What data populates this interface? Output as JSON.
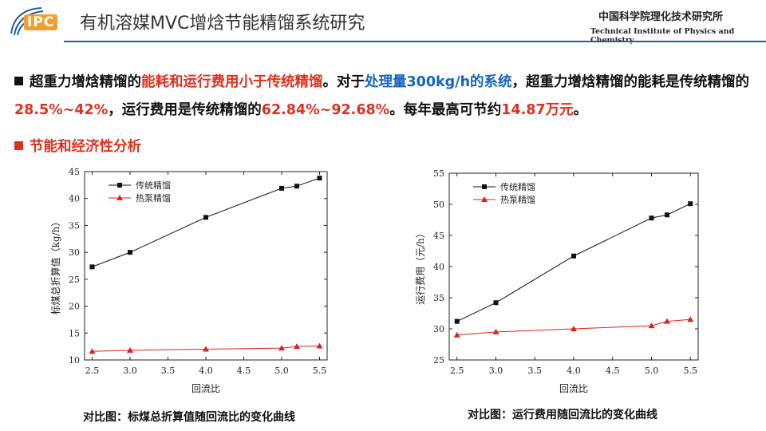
{
  "header": {
    "logo_text": "IPC",
    "title": "有机溶媒MVC增焓节能精馏系统研究",
    "institute_cn": "中国科学院理化技术研究所",
    "institute_en": "Technical Institute of Physics and Chemistry"
  },
  "intro": {
    "p1": "超重力增焓精馏的",
    "p2": "能耗和运行费用小于传统精馏",
    "p3": "。对于",
    "p4": "处理量300kg/h的系统",
    "p5": "，超重力增焓精馏的能耗是传统精馏的",
    "p6": "28.5%~42%",
    "p7": "，运行费用是传统精馏的",
    "p8": "62.84%~92.68%",
    "p9": "。每年最高可节约",
    "p10": "14.87万元",
    "p11": "。"
  },
  "subheading": "节能和经济性分析",
  "captions": {
    "left": "对比图：标煤总折算值随回流比的变化曲线",
    "right": "对比图：运行费用随回流比的变化曲线"
  },
  "colors": {
    "accent_red": "#e0301e",
    "accent_blue": "#1565c0",
    "series1": "#111111",
    "series2": "#e0201a"
  },
  "chart_data": [
    {
      "type": "line",
      "title": "",
      "xlabel": "回流比",
      "ylabel": "标煤总折算值（kg/h）",
      "xlim": [
        2.5,
        5.5
      ],
      "ylim": [
        10,
        45
      ],
      "xticks": [
        2.5,
        3.0,
        3.5,
        4.0,
        4.5,
        5.0,
        5.5
      ],
      "yticks": [
        10,
        15,
        20,
        25,
        30,
        35,
        40,
        45
      ],
      "legend_position": "top-left",
      "series": [
        {
          "name": "传统精馏",
          "marker": "square",
          "x": [
            2.5,
            3.0,
            4.0,
            5.0,
            5.2,
            5.5
          ],
          "y": [
            27.3,
            30.0,
            36.5,
            41.9,
            42.3,
            43.8
          ]
        },
        {
          "name": "热泵精馏",
          "marker": "triangle",
          "x": [
            2.5,
            3.0,
            4.0,
            5.0,
            5.2,
            5.5
          ],
          "y": [
            11.6,
            11.8,
            12.0,
            12.2,
            12.5,
            12.6
          ]
        }
      ]
    },
    {
      "type": "line",
      "title": "",
      "xlabel": "回流比",
      "ylabel": "运行费用（元/h）",
      "xlim": [
        2.5,
        5.5
      ],
      "ylim": [
        25,
        55
      ],
      "xticks": [
        2.5,
        3.0,
        3.5,
        4.0,
        4.5,
        5.0,
        5.5
      ],
      "yticks": [
        25,
        30,
        35,
        40,
        45,
        50,
        55
      ],
      "legend_position": "top-left",
      "series": [
        {
          "name": "传统精馏",
          "marker": "square",
          "x": [
            2.5,
            3.0,
            4.0,
            5.0,
            5.2,
            5.5
          ],
          "y": [
            31.2,
            34.2,
            41.7,
            47.8,
            48.3,
            50.1
          ]
        },
        {
          "name": "热泵精馏",
          "marker": "triangle",
          "x": [
            2.5,
            3.0,
            4.0,
            5.0,
            5.2,
            5.5
          ],
          "y": [
            29.0,
            29.5,
            30.0,
            30.5,
            31.2,
            31.5
          ]
        }
      ]
    }
  ]
}
